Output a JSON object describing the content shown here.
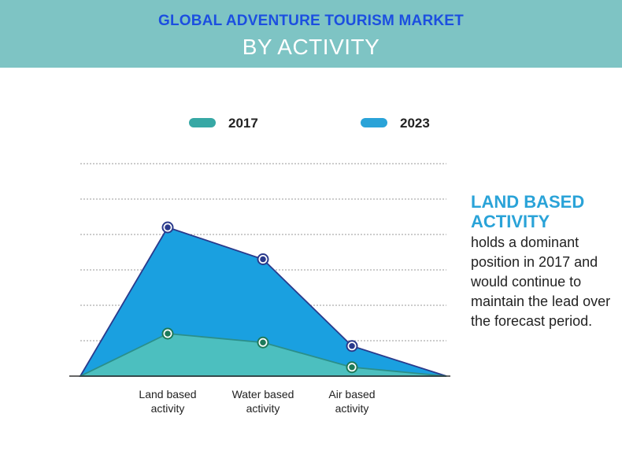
{
  "header": {
    "line1": "GLOBAL ADVENTURE TOURISM MARKET",
    "line2": "BY ACTIVITY"
  },
  "chart_data": {
    "type": "area",
    "categories": [
      "Land based activity",
      "Water based activity",
      "Air based activity"
    ],
    "category_labels": [
      [
        "Land based",
        "activity"
      ],
      [
        "Water based",
        "activity"
      ],
      [
        "Air based",
        "activity"
      ]
    ],
    "series": [
      {
        "name": "2017",
        "color": "#4cbfbf",
        "marker": "#1e7a5a",
        "values": [
          1.2,
          0.95,
          0.25
        ]
      },
      {
        "name": "2023",
        "color": "#1aa0e0",
        "marker": "#2a3a8c",
        "values": [
          4.2,
          3.3,
          0.85
        ]
      }
    ],
    "ylim": [
      0,
      6
    ],
    "grid": true,
    "legend_position": "top"
  },
  "side_note": {
    "title": "LAND BASED ACTIVITY",
    "text": "holds a dominant position in 2017 and would continue to maintain the lead over the forecast period."
  }
}
